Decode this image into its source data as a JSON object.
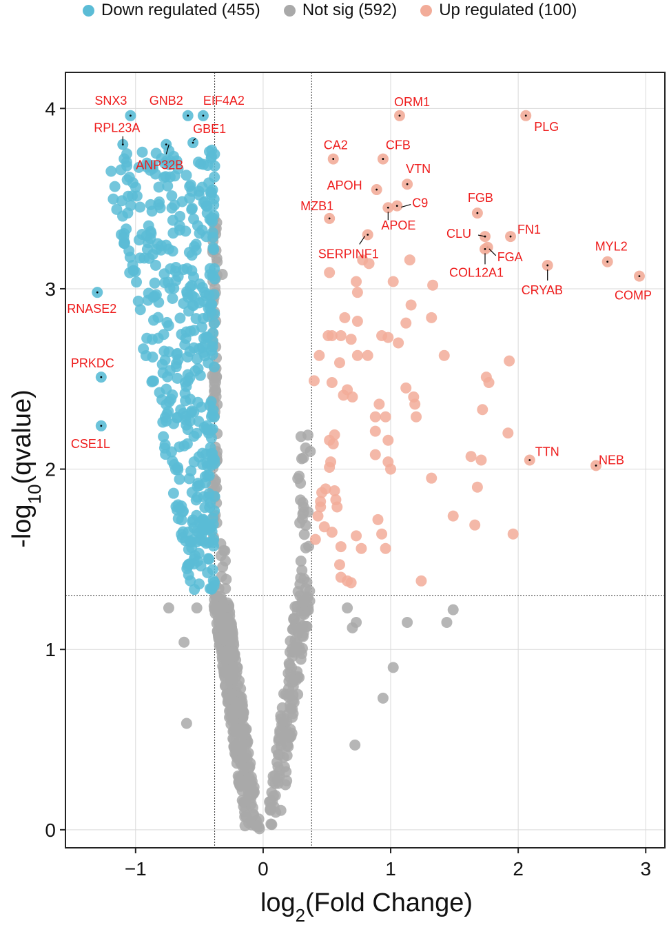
{
  "legend": {
    "down": {
      "label": "Down regulated (455)",
      "color": "#5bbcd6"
    },
    "notsig": {
      "label": "Not sig (592)",
      "color": "#a9a9a9"
    },
    "up": {
      "label": "Up regulated (100)",
      "color": "#f2ac99"
    }
  },
  "chart_data": {
    "type": "scatter",
    "xlabel": "log2(Fold Change)",
    "ylabel": "-log10(qvalue)",
    "xlim": [
      -1.55,
      3.15
    ],
    "ylim": [
      -0.1,
      4.2
    ],
    "xticks": [
      -1,
      0,
      1,
      2,
      3
    ],
    "yticks": [
      0,
      1,
      2,
      3,
      4
    ],
    "grid": true,
    "legend_position": "top",
    "thresholds": {
      "fold_change": [
        -0.38,
        0.38
      ],
      "qvalue": 1.3
    },
    "colors": {
      "down": "#5bbcd6",
      "notsig": "#a9a9a9",
      "up": "#f2ac99",
      "label": "#ee1c1c"
    },
    "counts": {
      "down": 455,
      "notsig": 592,
      "up": 100
    },
    "labeled_points": [
      {
        "gene": "SNX3",
        "x": -1.04,
        "y": 3.96,
        "group": "down"
      },
      {
        "gene": "GNB2",
        "x": -0.59,
        "y": 3.96,
        "group": "down"
      },
      {
        "gene": "EIF4A2",
        "x": -0.47,
        "y": 3.96,
        "group": "down"
      },
      {
        "gene": "RPL23A",
        "x": -1.1,
        "y": 3.8,
        "group": "down"
      },
      {
        "gene": "GBE1",
        "x": -0.55,
        "y": 3.81,
        "group": "down"
      },
      {
        "gene": "ANP32B",
        "x": -0.76,
        "y": 3.8,
        "group": "down"
      },
      {
        "gene": "RNASE2",
        "x": -1.3,
        "y": 2.98,
        "group": "down"
      },
      {
        "gene": "PRKDC",
        "x": -1.27,
        "y": 2.51,
        "group": "down"
      },
      {
        "gene": "CSE1L",
        "x": -1.27,
        "y": 2.24,
        "group": "down"
      },
      {
        "gene": "ORM1",
        "x": 1.07,
        "y": 3.96,
        "group": "up"
      },
      {
        "gene": "PLG",
        "x": 2.06,
        "y": 3.96,
        "group": "up"
      },
      {
        "gene": "CA2",
        "x": 0.55,
        "y": 3.72,
        "group": "up"
      },
      {
        "gene": "CFB",
        "x": 0.94,
        "y": 3.72,
        "group": "up"
      },
      {
        "gene": "VTN",
        "x": 1.13,
        "y": 3.58,
        "group": "up"
      },
      {
        "gene": "APOH",
        "x": 0.89,
        "y": 3.55,
        "group": "up"
      },
      {
        "gene": "C9",
        "x": 1.05,
        "y": 3.46,
        "group": "up"
      },
      {
        "gene": "APOE",
        "x": 0.98,
        "y": 3.45,
        "group": "up"
      },
      {
        "gene": "MZB1",
        "x": 0.52,
        "y": 3.39,
        "group": "up"
      },
      {
        "gene": "SERPINF1",
        "x": 0.82,
        "y": 3.3,
        "group": "up"
      },
      {
        "gene": "FGB",
        "x": 1.68,
        "y": 3.42,
        "group": "up"
      },
      {
        "gene": "CLU",
        "x": 1.74,
        "y": 3.29,
        "group": "up"
      },
      {
        "gene": "FN1",
        "x": 1.94,
        "y": 3.29,
        "group": "up"
      },
      {
        "gene": "FGA",
        "x": 1.76,
        "y": 3.23,
        "group": "up"
      },
      {
        "gene": "COL12A1",
        "x": 1.74,
        "y": 3.22,
        "group": "up"
      },
      {
        "gene": "CRYAB",
        "x": 2.23,
        "y": 3.13,
        "group": "up"
      },
      {
        "gene": "MYL2",
        "x": 2.7,
        "y": 3.15,
        "group": "up"
      },
      {
        "gene": "COMP",
        "x": 2.95,
        "y": 3.07,
        "group": "up"
      },
      {
        "gene": "TTN",
        "x": 2.09,
        "y": 2.05,
        "group": "up"
      },
      {
        "gene": "NEB",
        "x": 2.61,
        "y": 2.02,
        "group": "up"
      }
    ],
    "up_points": [
      [
        0.52,
        3.09
      ],
      [
        0.78,
        3.16
      ],
      [
        1.02,
        3.04
      ],
      [
        1.15,
        3.16
      ],
      [
        1.33,
        3.02
      ],
      [
        0.73,
        3.04
      ],
      [
        0.74,
        2.98
      ],
      [
        0.64,
        2.84
      ],
      [
        1.16,
        2.91
      ],
      [
        1.32,
        2.84
      ],
      [
        0.74,
        2.82
      ],
      [
        1.12,
        2.81
      ],
      [
        0.93,
        2.74
      ],
      [
        0.98,
        2.73
      ],
      [
        0.51,
        2.74
      ],
      [
        0.54,
        2.74
      ],
      [
        0.61,
        2.74
      ],
      [
        0.44,
        2.63
      ],
      [
        0.6,
        2.59
      ],
      [
        0.74,
        2.63
      ],
      [
        0.82,
        2.63
      ],
      [
        1.42,
        2.63
      ],
      [
        1.93,
        2.6
      ],
      [
        0.54,
        2.48
      ],
      [
        0.4,
        2.49
      ],
      [
        0.63,
        2.41
      ],
      [
        0.66,
        2.44
      ],
      [
        0.7,
        2.4
      ],
      [
        1.75,
        2.51
      ],
      [
        1.77,
        2.48
      ],
      [
        1.12,
        2.45
      ],
      [
        1.18,
        2.4
      ],
      [
        1.19,
        2.36
      ],
      [
        1.72,
        2.33
      ],
      [
        0.91,
        2.36
      ],
      [
        1.2,
        2.29
      ],
      [
        0.88,
        2.29
      ],
      [
        0.96,
        2.29
      ],
      [
        0.88,
        2.21
      ],
      [
        1.92,
        2.2
      ],
      [
        0.52,
        2.16
      ],
      [
        0.55,
        2.14
      ],
      [
        0.98,
        2.16
      ],
      [
        0.88,
        2.08
      ],
      [
        1.63,
        2.07
      ],
      [
        0.53,
        2.04
      ],
      [
        0.98,
        2.04
      ],
      [
        1.71,
        2.05
      ],
      [
        0.52,
        2.01
      ],
      [
        1.0,
        2.0
      ],
      [
        1.32,
        1.95
      ],
      [
        1.68,
        1.9
      ],
      [
        0.46,
        1.87
      ],
      [
        0.49,
        1.89
      ],
      [
        0.56,
        1.88
      ],
      [
        0.45,
        1.82
      ],
      [
        0.57,
        1.83
      ],
      [
        0.58,
        1.79
      ],
      [
        0.45,
        1.79
      ],
      [
        0.43,
        1.74
      ],
      [
        0.9,
        1.72
      ],
      [
        1.49,
        1.74
      ],
      [
        0.48,
        1.68
      ],
      [
        0.54,
        1.65
      ],
      [
        1.66,
        1.69
      ],
      [
        0.93,
        1.64
      ],
      [
        0.73,
        1.63
      ],
      [
        1.96,
        1.64
      ],
      [
        0.41,
        1.61
      ],
      [
        0.61,
        1.57
      ],
      [
        0.77,
        1.56
      ],
      [
        0.96,
        1.56
      ],
      [
        0.6,
        1.47
      ],
      [
        0.61,
        1.4
      ],
      [
        0.66,
        1.38
      ],
      [
        0.69,
        1.37
      ],
      [
        1.24,
        1.38
      ],
      [
        0.83,
        3.14
      ],
      [
        0.56,
        2.19
      ],
      [
        1.06,
        2.7
      ],
      [
        0.69,
        2.72
      ]
    ]
  }
}
